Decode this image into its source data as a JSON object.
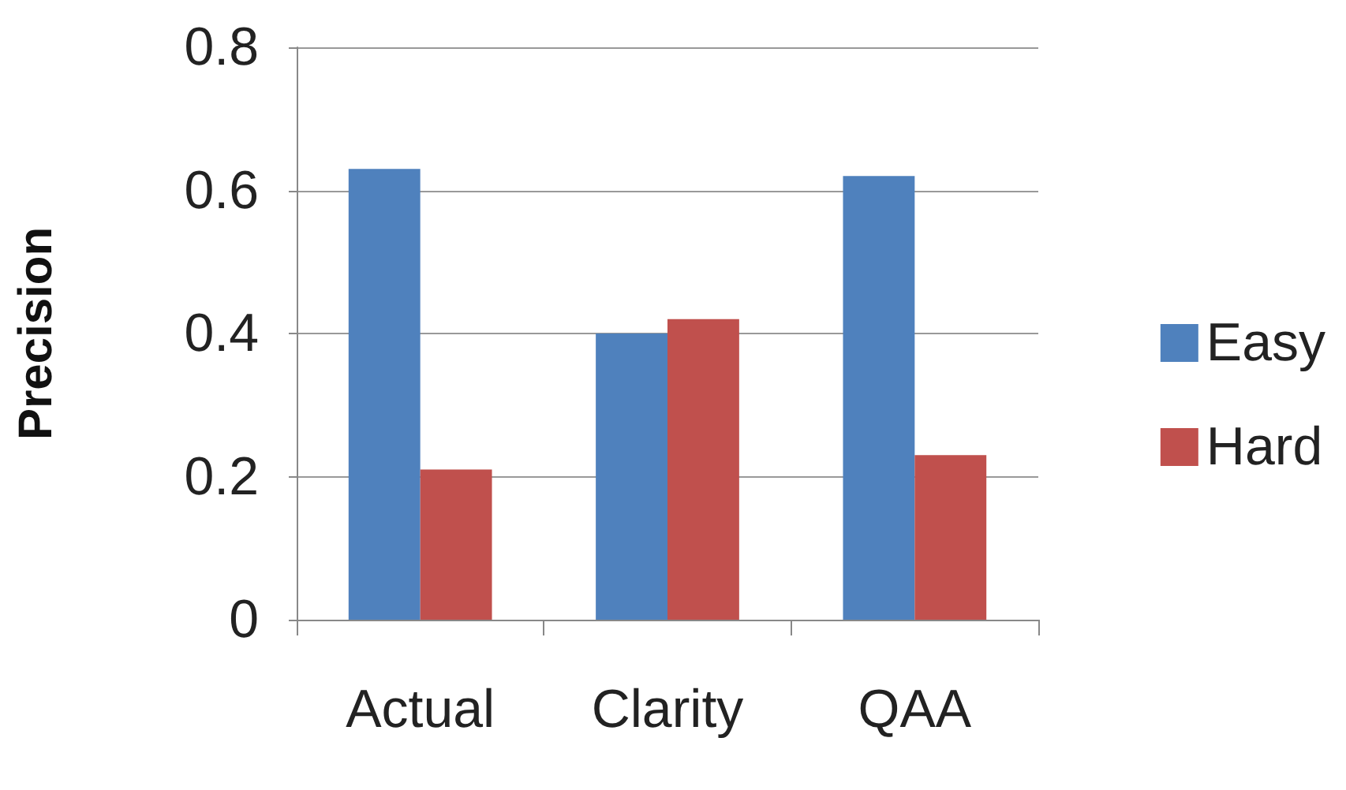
{
  "chart_data": {
    "type": "bar",
    "ylabel": "Precision",
    "categories": [
      "Actual",
      "Clarity",
      "QAA"
    ],
    "series": [
      {
        "name": "Easy",
        "color": "#4f81bd",
        "values": [
          0.63,
          0.4,
          0.62
        ]
      },
      {
        "name": "Hard",
        "color": "#c0504d",
        "values": [
          0.21,
          0.42,
          0.23
        ]
      }
    ],
    "ylim": [
      0,
      0.8
    ],
    "yticks": [
      0,
      0.2,
      0.4,
      0.6,
      0.8
    ],
    "grid": "y",
    "legend": "right"
  }
}
